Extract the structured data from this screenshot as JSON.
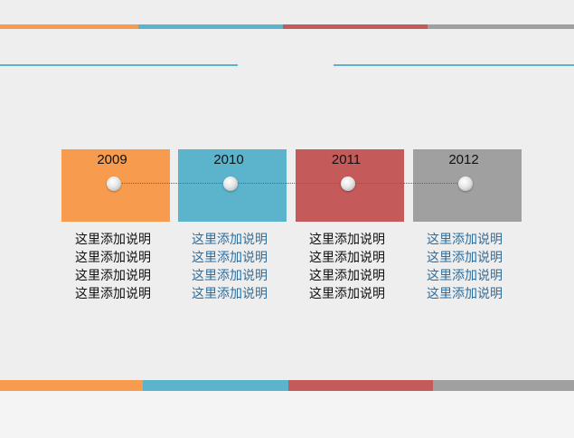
{
  "columns": [
    {
      "year": "2009",
      "lines": [
        "这里添加说明",
        "这里添加说明",
        "这里添加说明",
        "这里添加说明"
      ]
    },
    {
      "year": "2010",
      "lines": [
        "这里添加说明",
        "这里添加说明",
        "这里添加说明",
        "这里添加说明"
      ]
    },
    {
      "year": "2011",
      "lines": [
        "这里添加说明",
        "这里添加说明",
        "这里添加说明",
        "这里添加说明"
      ]
    },
    {
      "year": "2012",
      "lines": [
        "这里添加说明",
        "这里添加说明",
        "这里添加说明",
        "这里添加说明"
      ]
    }
  ]
}
